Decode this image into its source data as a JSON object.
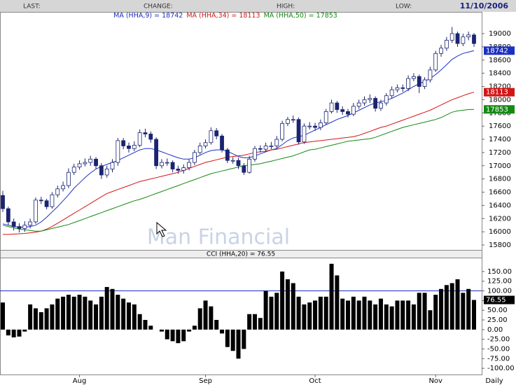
{
  "header": {
    "labels": [
      "LAST:",
      "CHANGE:",
      "HIGH:",
      "LOW:"
    ],
    "date": "11/10/2006"
  },
  "watermark": "Man Financial",
  "footer": "Daily",
  "chart_data": [
    {
      "type": "candlestick",
      "categories": [
        null,
        null,
        null,
        null,
        null,
        null,
        null,
        null,
        null,
        null,
        null,
        null,
        null,
        null,
        "Aug",
        null,
        null,
        null,
        null,
        null,
        null,
        null,
        null,
        null,
        null,
        null,
        null,
        null,
        null,
        null,
        null,
        null,
        null,
        null,
        null,
        null,
        null,
        "Sep",
        null,
        null,
        null,
        null,
        null,
        null,
        null,
        null,
        null,
        null,
        null,
        null,
        null,
        null,
        null,
        null,
        null,
        null,
        null,
        "Oct",
        null,
        null,
        null,
        null,
        null,
        null,
        null,
        null,
        null,
        null,
        null,
        null,
        null,
        null,
        null,
        null,
        null,
        null,
        null,
        null,
        null,
        "Nov",
        null,
        null,
        null,
        null,
        null,
        null,
        null
      ],
      "open": [
        16550,
        16350,
        16150,
        16080,
        16050,
        16100,
        16150,
        16480,
        16470,
        16380,
        16560,
        16650,
        16700,
        16900,
        16980,
        17030,
        17050,
        17100,
        17000,
        16860,
        16950,
        17050,
        17380,
        17300,
        17260,
        17310,
        17500,
        17480,
        17400,
        17000,
        17050,
        17050,
        16950,
        16930,
        16970,
        17050,
        17200,
        17300,
        17350,
        17530,
        17450,
        17240,
        17080,
        17080,
        17000,
        16900,
        17100,
        17260,
        17250,
        17300,
        17300,
        17400,
        17640,
        17700,
        17700,
        17360,
        17600,
        17600,
        17580,
        17650,
        17820,
        17950,
        17850,
        17820,
        17780,
        17900,
        17950,
        18000,
        18020,
        17870,
        17950,
        18060,
        18150,
        18180,
        18170,
        18320,
        18350,
        18200,
        18300,
        18450,
        18700,
        18780,
        18900,
        19000,
        18850,
        18950,
        18980
      ],
      "high": [
        16620,
        16380,
        16200,
        16130,
        16160,
        16200,
        16520,
        16530,
        16500,
        16600,
        16700,
        16760,
        16960,
        17030,
        17080,
        17110,
        17150,
        17130,
        17040,
        17000,
        17100,
        17420,
        17420,
        17350,
        17370,
        17550,
        17560,
        17520,
        17430,
        17100,
        17110,
        17080,
        17000,
        17020,
        17100,
        17240,
        17350,
        17400,
        17580,
        17570,
        17480,
        17270,
        17130,
        17120,
        17040,
        17150,
        17300,
        17310,
        17350,
        17360,
        17450,
        17680,
        17740,
        17760,
        17730,
        17640,
        17660,
        17650,
        17700,
        17860,
        18000,
        17980,
        17900,
        17860,
        17950,
        18000,
        18050,
        18080,
        18050,
        18000,
        18100,
        18200,
        18230,
        18230,
        18370,
        18400,
        18380,
        18340,
        18500,
        18740,
        18830,
        18950,
        19100,
        19030,
        19000,
        19030,
        19010
      ],
      "low": [
        16300,
        16100,
        16020,
        15990,
        16000,
        16050,
        16120,
        16420,
        16340,
        16350,
        16520,
        16610,
        16660,
        16860,
        16940,
        16990,
        17000,
        16950,
        16800,
        16820,
        16900,
        17000,
        17250,
        17200,
        17220,
        17280,
        17430,
        17350,
        16950,
        16960,
        17000,
        16900,
        16880,
        16880,
        16930,
        17010,
        17170,
        17260,
        17320,
        17400,
        17200,
        17040,
        17030,
        16950,
        16860,
        16880,
        17060,
        17200,
        17210,
        17250,
        17260,
        17370,
        17600,
        17650,
        17320,
        17330,
        17550,
        17530,
        17540,
        17620,
        17790,
        17800,
        17770,
        17730,
        17750,
        17860,
        17910,
        17950,
        17820,
        17830,
        17910,
        18020,
        18110,
        18120,
        18130,
        18280,
        18100,
        18160,
        18260,
        18420,
        18650,
        18740,
        18860,
        18800,
        18810,
        18900,
        18800
      ],
      "close": [
        16350,
        16150,
        16080,
        16050,
        16100,
        16150,
        16480,
        16470,
        16380,
        16560,
        16650,
        16700,
        16900,
        16980,
        17030,
        17050,
        17100,
        17000,
        16860,
        16950,
        17050,
        17380,
        17300,
        17260,
        17310,
        17500,
        17480,
        17400,
        17000,
        17050,
        17050,
        16950,
        16930,
        16970,
        17050,
        17200,
        17300,
        17350,
        17530,
        17450,
        17240,
        17080,
        17080,
        17000,
        16900,
        17100,
        17260,
        17250,
        17300,
        17300,
        17400,
        17640,
        17700,
        17700,
        17360,
        17600,
        17600,
        17580,
        17650,
        17820,
        17950,
        17850,
        17820,
        17780,
        17900,
        17950,
        18000,
        18020,
        17870,
        17950,
        18060,
        18150,
        18180,
        18170,
        18320,
        18350,
        18200,
        18300,
        18450,
        18700,
        18780,
        18900,
        19000,
        18850,
        18950,
        18980,
        18850
      ],
      "up_color": "#ffffff",
      "down_color": "#1a2470",
      "series": [
        {
          "name": "MA (HHA,9) = 18742",
          "color": "#1c2fc4",
          "values": [
            16120,
            16100,
            16080,
            16070,
            16070,
            16080,
            16100,
            16150,
            16220,
            16300,
            16380,
            16470,
            16560,
            16660,
            16740,
            16820,
            16890,
            16950,
            16990,
            17020,
            17050,
            17080,
            17120,
            17160,
            17200,
            17240,
            17260,
            17260,
            17240,
            17210,
            17180,
            17150,
            17120,
            17100,
            17100,
            17120,
            17160,
            17200,
            17230,
            17240,
            17240,
            17220,
            17180,
            17140,
            17120,
            17120,
            17150,
            17180,
            17210,
            17240,
            17260,
            17320,
            17380,
            17420,
            17440,
            17460,
            17500,
            17540,
            17580,
            17620,
            17660,
            17700,
            17730,
            17760,
            17800,
            17840,
            17880,
            17920,
            17950,
            17970,
            17990,
            18020,
            18060,
            18100,
            18150,
            18200,
            18240,
            18280,
            18320,
            18380,
            18450,
            18530,
            18610,
            18660,
            18700,
            18720,
            18742
          ]
        },
        {
          "name": "MA (HHA,34) = 18113",
          "color": "#d41515",
          "values": [
            15960,
            15960,
            15965,
            15970,
            15975,
            15985,
            15995,
            16010,
            16040,
            16080,
            16130,
            16180,
            16230,
            16280,
            16330,
            16380,
            16430,
            16480,
            16530,
            16580,
            16610,
            16640,
            16670,
            16700,
            16730,
            16760,
            16780,
            16800,
            16820,
            16840,
            16860,
            16880,
            16900,
            16930,
            16960,
            16990,
            17020,
            17050,
            17070,
            17090,
            17110,
            17130,
            17140,
            17150,
            17160,
            17180,
            17200,
            17210,
            17220,
            17240,
            17250,
            17270,
            17290,
            17310,
            17330,
            17350,
            17360,
            17370,
            17380,
            17390,
            17400,
            17410,
            17420,
            17430,
            17440,
            17460,
            17490,
            17520,
            17550,
            17580,
            17600,
            17630,
            17660,
            17690,
            17720,
            17750,
            17780,
            17810,
            17840,
            17880,
            17920,
            17960,
            18000,
            18030,
            18060,
            18090,
            18113
          ]
        },
        {
          "name": "MA (HHA,50) = 17853",
          "color": "#138a13",
          "values": [
            16100,
            16080,
            16060,
            16040,
            16030,
            16020,
            16010,
            16010,
            16030,
            16050,
            16070,
            16090,
            16110,
            16140,
            16170,
            16200,
            16230,
            16260,
            16290,
            16320,
            16350,
            16380,
            16410,
            16440,
            16470,
            16490,
            16520,
            16550,
            16580,
            16610,
            16640,
            16670,
            16700,
            16730,
            16760,
            16790,
            16820,
            16850,
            16880,
            16900,
            16920,
            16940,
            16960,
            16980,
            17000,
            17010,
            17020,
            17030,
            17050,
            17070,
            17090,
            17110,
            17130,
            17150,
            17180,
            17210,
            17240,
            17250,
            17270,
            17290,
            17310,
            17330,
            17350,
            17370,
            17380,
            17390,
            17400,
            17410,
            17430,
            17460,
            17490,
            17520,
            17550,
            17580,
            17600,
            17620,
            17640,
            17660,
            17680,
            17700,
            17730,
            17770,
            17810,
            17830,
            17840,
            17850,
            17853
          ]
        }
      ],
      "ylim": [
        15726,
        19212
      ],
      "yticks": [
        15800,
        16000,
        16200,
        16400,
        16600,
        16800,
        17000,
        17200,
        17400,
        17600,
        17800,
        18000,
        18200,
        18400,
        18600,
        18800,
        19000
      ],
      "grid": false
    },
    {
      "type": "bar",
      "title": "CCI (HHA,20) = 76.55",
      "color": "#000000",
      "values": [
        70,
        -15,
        -20,
        -18,
        -5,
        65,
        55,
        45,
        55,
        65,
        80,
        85,
        90,
        85,
        90,
        85,
        75,
        65,
        85,
        110,
        105,
        90,
        80,
        70,
        65,
        40,
        25,
        10,
        0,
        -5,
        -25,
        -30,
        -35,
        -30,
        -5,
        10,
        55,
        75,
        60,
        25,
        -10,
        -45,
        -55,
        -75,
        -50,
        40,
        40,
        30,
        100,
        85,
        95,
        150,
        130,
        120,
        85,
        65,
        70,
        75,
        85,
        85,
        170,
        140,
        80,
        75,
        85,
        75,
        85,
        75,
        65,
        80,
        65,
        60,
        75,
        75,
        75,
        65,
        95,
        95,
        50,
        90,
        105,
        115,
        120,
        130,
        95,
        105,
        76.55
      ],
      "reference_line": 100,
      "reference_color": "#1c2fc4",
      "ylim": [
        -116,
        186
      ],
      "yticks": [
        {
          "value": 150,
          "label": "150.00"
        },
        {
          "value": 125,
          "label": "125.00"
        },
        {
          "value": 100,
          "label": "100.00"
        },
        {
          "value": 75,
          "label": "75.00"
        },
        {
          "value": 50,
          "label": "50.00"
        },
        {
          "value": 25,
          "label": "25.00"
        },
        {
          "value": 0,
          "label": "0.00"
        },
        {
          "value": -25,
          "label": "-25.00"
        },
        {
          "value": -50,
          "label": "-50.00"
        },
        {
          "value": -75,
          "label": "-75.00"
        },
        {
          "value": -100,
          "label": "-100.00"
        }
      ],
      "grid": false
    }
  ]
}
